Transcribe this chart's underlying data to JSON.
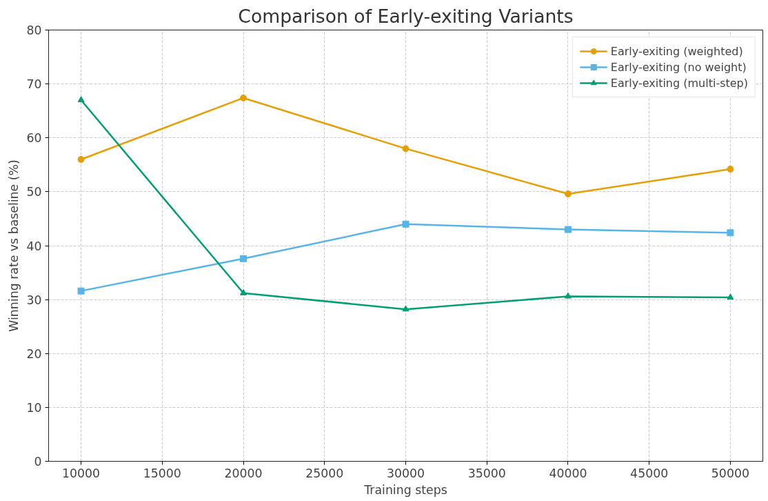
{
  "chart_data": {
    "type": "line",
    "title": "Comparison of Early-exiting Variants",
    "xlabel": "Training steps",
    "ylabel": "Winning rate vs baseline (%)",
    "x": [
      10000,
      20000,
      30000,
      40000,
      50000
    ],
    "series": [
      {
        "name": "Early-exiting (weighted)",
        "color": "#e69f00",
        "marker": "circle",
        "values": [
          56.0,
          67.4,
          58.0,
          49.6,
          54.2
        ]
      },
      {
        "name": "Early-exiting (no weight)",
        "color": "#56b4e9",
        "marker": "square",
        "values": [
          31.6,
          37.6,
          44.0,
          43.0,
          42.4
        ]
      },
      {
        "name": "Early-exiting (multi-step)",
        "color": "#009e73",
        "marker": "triangle",
        "values": [
          67.0,
          31.2,
          28.2,
          30.6,
          30.4
        ]
      }
    ],
    "xlim": [
      8000,
      52000
    ],
    "xticks": [
      10000,
      15000,
      20000,
      25000,
      30000,
      35000,
      40000,
      45000,
      50000
    ],
    "ylim": [
      0,
      80
    ],
    "yticks": [
      0,
      10,
      20,
      30,
      40,
      50,
      60,
      70,
      80
    ],
    "grid": true,
    "legend": "top right",
    "line_style": "solid"
  }
}
